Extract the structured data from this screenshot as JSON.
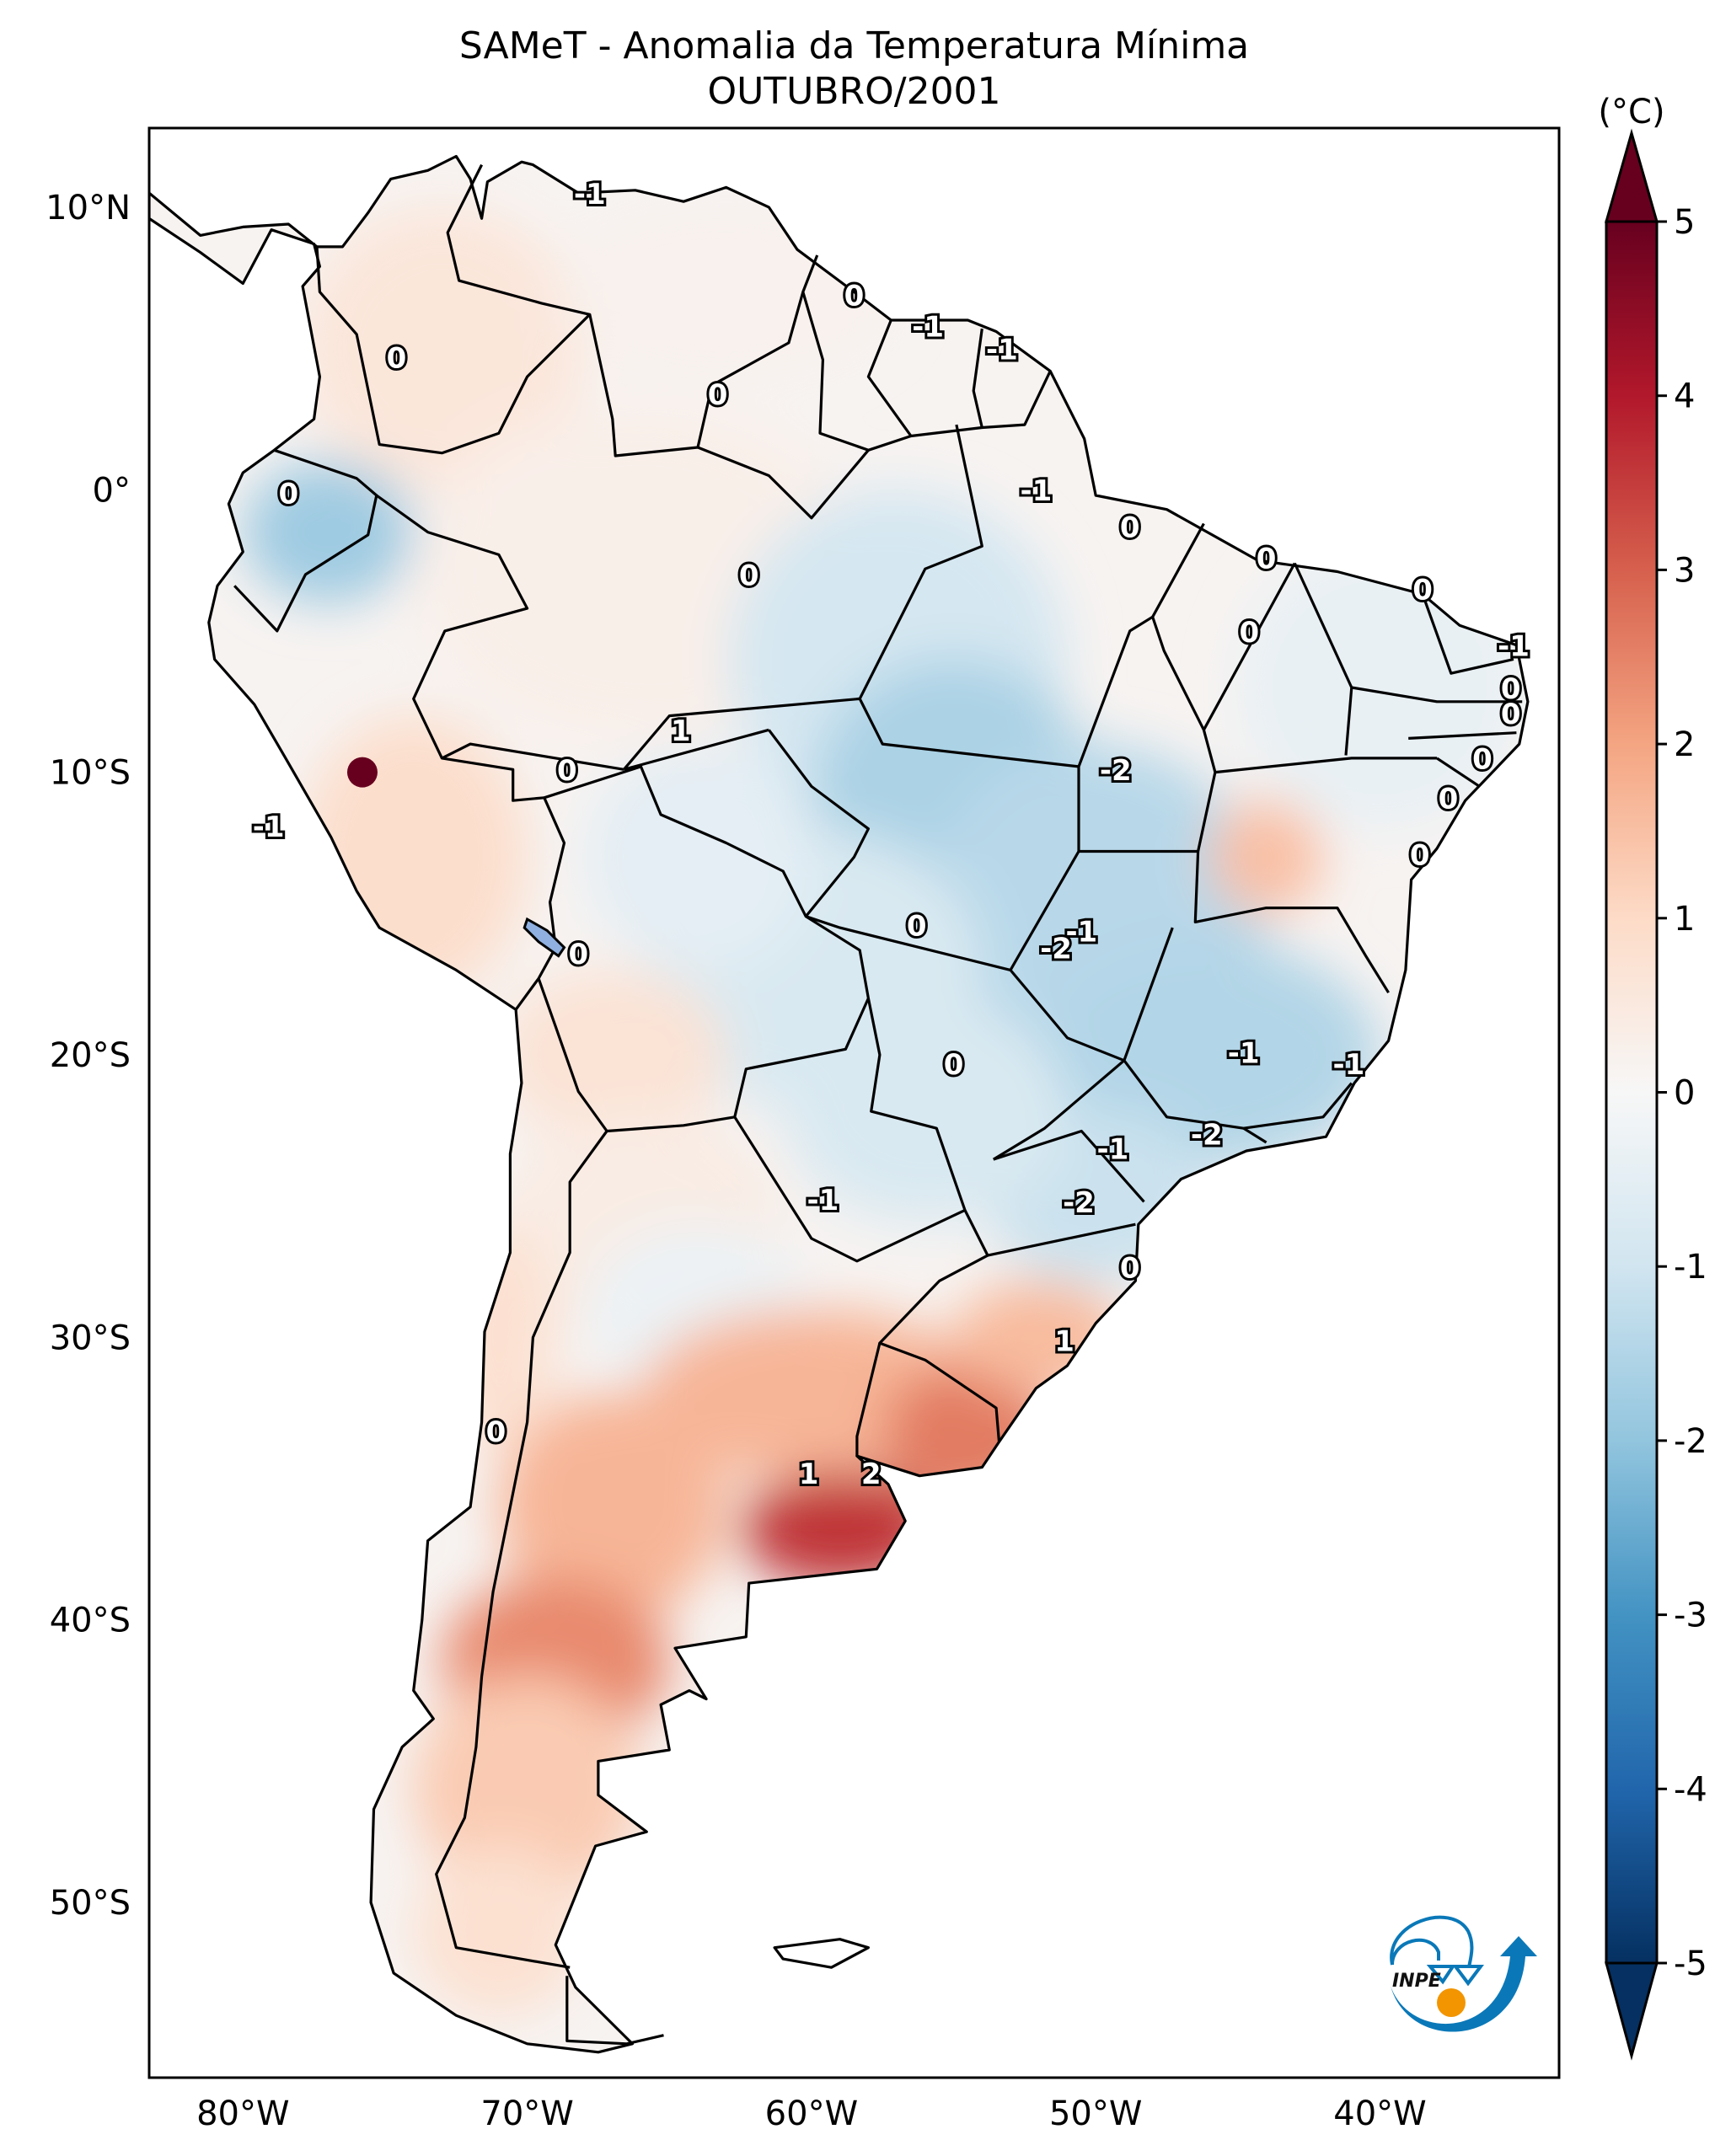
{
  "title": {
    "line1": "SAMeT - Anomalia da Temperatura Mínima",
    "line2": "OUTUBRO/2001"
  },
  "chart_data": {
    "type": "heatmap",
    "title": "SAMeT - Anomalia da Temperatura Mínima",
    "subtitle": "OUTUBRO/2001",
    "variable": "Minimum temperature anomaly",
    "units": "(°C)",
    "region": "South America",
    "extent": {
      "lon": [
        -83.3,
        -33.7
      ],
      "lat": [
        -56.2,
        12.8
      ]
    },
    "xticks": [
      {
        "value": -80,
        "label": "80°W"
      },
      {
        "value": -70,
        "label": "70°W"
      },
      {
        "value": -60,
        "label": "60°W"
      },
      {
        "value": -50,
        "label": "50°W"
      },
      {
        "value": -40,
        "label": "40°W"
      }
    ],
    "yticks": [
      {
        "value": 10,
        "label": "10°N"
      },
      {
        "value": 0,
        "label": "0°"
      },
      {
        "value": -10,
        "label": "10°S"
      },
      {
        "value": -20,
        "label": "20°S"
      },
      {
        "value": -30,
        "label": "30°S"
      },
      {
        "value": -40,
        "label": "40°S"
      },
      {
        "value": -50,
        "label": "50°S"
      }
    ],
    "colorbar": {
      "label": "(°C)",
      "colormap": "RdBu_r",
      "range": [
        -5,
        5
      ],
      "extend": "both",
      "ticks": [
        5,
        4,
        3,
        2,
        1,
        0,
        -1,
        -2,
        -3,
        -4,
        -5
      ],
      "tick_labels": [
        "5",
        "4",
        "3",
        "2",
        "1",
        "0",
        "-1",
        "-2",
        "-3",
        "-4",
        "-5"
      ],
      "stops": [
        {
          "v": -5,
          "c": "#053061"
        },
        {
          "v": -4,
          "c": "#2166ac"
        },
        {
          "v": -3,
          "c": "#4393c3"
        },
        {
          "v": -2,
          "c": "#92c5de"
        },
        {
          "v": -1,
          "c": "#d1e5f0"
        },
        {
          "v": 0,
          "c": "#f7f7f7"
        },
        {
          "v": 1,
          "c": "#fddbc7"
        },
        {
          "v": 2,
          "c": "#f4a582"
        },
        {
          "v": 3,
          "c": "#d6604d"
        },
        {
          "v": 4,
          "c": "#b2182b"
        },
        {
          "v": 5,
          "c": "#67001f"
        }
      ]
    },
    "anomaly_centers": [
      {
        "lon": -55,
        "lat": -10.5,
        "value": -2.3,
        "desc": "Mato Grosso cold center"
      },
      {
        "lon": -77.5,
        "lat": -1.5,
        "value": -2.5,
        "desc": "Ecuador cold center"
      },
      {
        "lon": -45,
        "lat": -19.5,
        "value": -2.0,
        "desc": "Minas Gerais cold"
      },
      {
        "lon": -59,
        "lat": -37,
        "value": 3.8,
        "desc": "Buenos Aires warm center"
      },
      {
        "lon": -54,
        "lat": -33.5,
        "value": 2.8,
        "desc": "Uruguay warm"
      },
      {
        "lon": -69,
        "lat": -41.5,
        "value": 2.5,
        "desc": "Patagonia warm"
      },
      {
        "lon": -75.8,
        "lat": -10,
        "value": 5.0,
        "desc": "Peru hot spot"
      },
      {
        "lon": -45,
        "lat": -13.5,
        "value": 2.0,
        "desc": "Bahia warm spot"
      }
    ],
    "contour_labels": [
      {
        "lon": -67.8,
        "lat": 10.4,
        "text": "-1"
      },
      {
        "lon": -74.6,
        "lat": 4.6,
        "text": "0"
      },
      {
        "lon": -63.3,
        "lat": 3.3,
        "text": "0"
      },
      {
        "lon": -58.5,
        "lat": 6.8,
        "text": "0"
      },
      {
        "lon": -55.9,
        "lat": 5.7,
        "text": "-1"
      },
      {
        "lon": -53.3,
        "lat": 4.9,
        "text": "-1"
      },
      {
        "lon": -78.4,
        "lat": -0.2,
        "text": "0"
      },
      {
        "lon": -52.1,
        "lat": -0.1,
        "text": "-1"
      },
      {
        "lon": -48.8,
        "lat": -1.4,
        "text": "0"
      },
      {
        "lon": -62.2,
        "lat": -3.1,
        "text": "0"
      },
      {
        "lon": -44.0,
        "lat": -2.5,
        "text": "0"
      },
      {
        "lon": -38.5,
        "lat": -3.6,
        "text": "0"
      },
      {
        "lon": -44.6,
        "lat": -5.1,
        "text": "0"
      },
      {
        "lon": -35.3,
        "lat": -5.6,
        "text": "-1"
      },
      {
        "lon": -35.4,
        "lat": -7.1,
        "text": "0"
      },
      {
        "lon": -35.4,
        "lat": -8.0,
        "text": "0"
      },
      {
        "lon": -36.4,
        "lat": -9.6,
        "text": "0"
      },
      {
        "lon": -37.6,
        "lat": -11.0,
        "text": "0"
      },
      {
        "lon": -38.6,
        "lat": -13.0,
        "text": "0"
      },
      {
        "lon": -64.6,
        "lat": -8.6,
        "text": "1"
      },
      {
        "lon": -68.6,
        "lat": -10.0,
        "text": "0"
      },
      {
        "lon": -49.3,
        "lat": -10.0,
        "text": "-2"
      },
      {
        "lon": -79.1,
        "lat": -12.0,
        "text": "-1"
      },
      {
        "lon": -56.3,
        "lat": -15.5,
        "text": "0"
      },
      {
        "lon": -68.2,
        "lat": -16.5,
        "text": "0"
      },
      {
        "lon": -50.5,
        "lat": -15.7,
        "text": "-1"
      },
      {
        "lon": -51.4,
        "lat": -16.3,
        "text": "-2"
      },
      {
        "lon": -55.0,
        "lat": -20.4,
        "text": "0"
      },
      {
        "lon": -44.8,
        "lat": -20.0,
        "text": "-1"
      },
      {
        "lon": -41.1,
        "lat": -20.4,
        "text": "-1"
      },
      {
        "lon": -46.1,
        "lat": -22.9,
        "text": "-2"
      },
      {
        "lon": -49.4,
        "lat": -23.4,
        "text": "-1"
      },
      {
        "lon": -59.6,
        "lat": -25.2,
        "text": "-1"
      },
      {
        "lon": -50.6,
        "lat": -25.3,
        "text": "-2"
      },
      {
        "lon": -48.8,
        "lat": -27.6,
        "text": "0"
      },
      {
        "lon": -51.1,
        "lat": -30.2,
        "text": "1"
      },
      {
        "lon": -71.1,
        "lat": -33.4,
        "text": "0"
      },
      {
        "lon": -60.1,
        "lat": -34.9,
        "text": "1"
      },
      {
        "lon": -57.9,
        "lat": -34.9,
        "text": "2"
      }
    ]
  },
  "logo": {
    "text": "INPE",
    "blue": "#0a78b8",
    "orange": "#f29500"
  },
  "lake_color": "#8fb0e0"
}
